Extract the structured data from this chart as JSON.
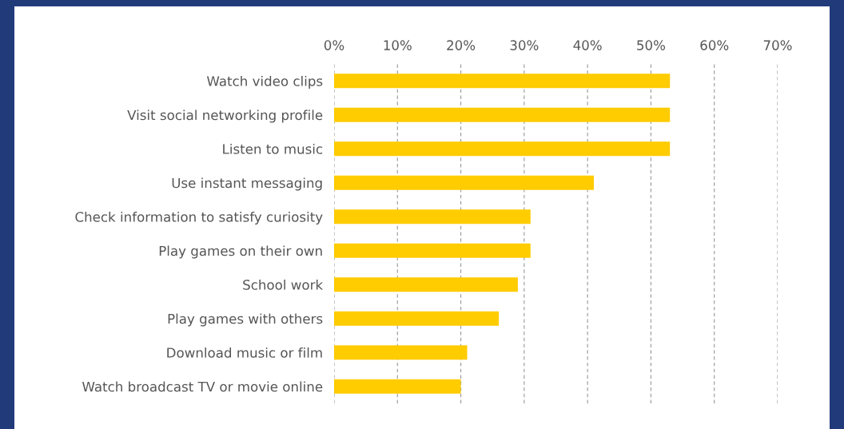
{
  "chart_data": {
    "type": "bar",
    "orientation": "horizontal",
    "categories": [
      "Watch video clips",
      "Visit social networking profile",
      "Listen to music",
      "Use instant messaging",
      "Check information to satisfy curiosity",
      "Play games on their own",
      "School work",
      "Play games with others",
      "Download music or film",
      "Watch broadcast TV or movie online"
    ],
    "values": [
      53,
      53,
      53,
      41,
      31,
      31,
      29,
      26,
      21,
      20
    ],
    "color": "#ffcc00",
    "xlim": [
      0,
      70
    ],
    "xticks": [
      {
        "value": 0,
        "label": "0%"
      },
      {
        "value": 10,
        "label": "10%"
      },
      {
        "value": 20,
        "label": "20%"
      },
      {
        "value": 30,
        "label": "30%"
      },
      {
        "value": 40,
        "label": "40%"
      },
      {
        "value": 50,
        "label": "50%"
      },
      {
        "value": 60,
        "label": "60%"
      },
      {
        "value": 70,
        "label": "70%"
      }
    ],
    "grid": "x"
  }
}
